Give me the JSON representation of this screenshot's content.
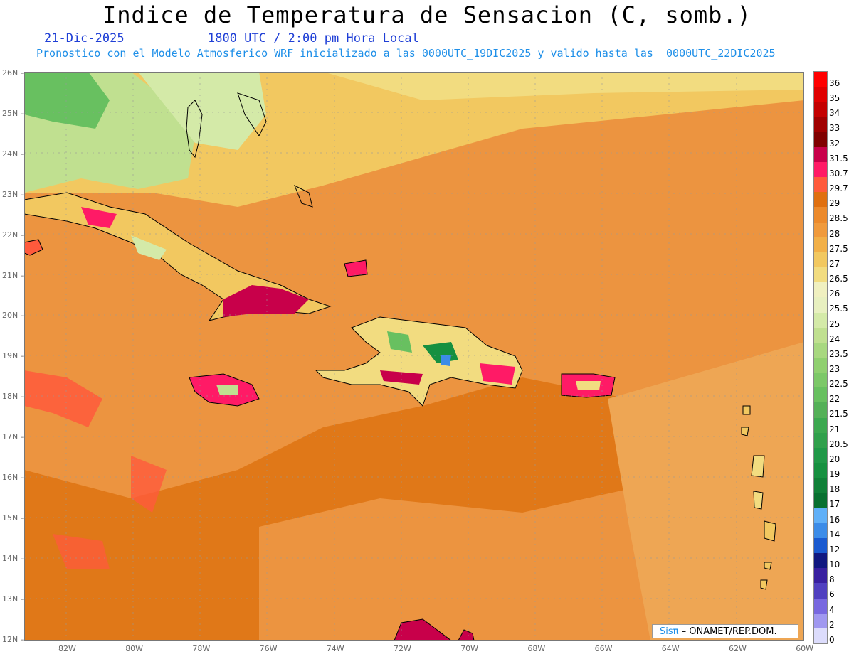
{
  "header": {
    "title": "Indice de Temperatura de Sensacion (C, somb.)",
    "date": "21-Dic-2025",
    "time": "1800 UTC / 2:00 pm Hora Local",
    "model_line": "Pronostico con el Modelo Atmosferico WRF inicializado a las 0000UTC_19DIC2025 y valido hasta las  0000UTC_22DIC2025"
  },
  "credit": {
    "logo": "Sisπ",
    "text": " – ONAMET/REP.DOM."
  },
  "axes": {
    "latitudes": [
      "26N",
      "25N",
      "24N",
      "23N",
      "22N",
      "21N",
      "20N",
      "19N",
      "18N",
      "17N",
      "16N",
      "15N",
      "14N",
      "13N",
      "12N"
    ],
    "longitudes": [
      "82W",
      "80W",
      "78W",
      "76W",
      "74W",
      "72W",
      "70W",
      "68W",
      "66W",
      "64W",
      "62W",
      "60W"
    ]
  },
  "legend": {
    "labels": [
      "36",
      "35",
      "34",
      "33",
      "32",
      "31.5",
      "30.7",
      "29.7",
      "29",
      "28.5",
      "28",
      "27.5",
      "27",
      "26.5",
      "26",
      "25.5",
      "25",
      "24",
      "23.5",
      "23",
      "22.5",
      "22",
      "21.5",
      "21",
      "20.5",
      "20",
      "19",
      "18",
      "17",
      "16",
      "14",
      "12",
      "10",
      "8",
      "6",
      "4",
      "2",
      "0"
    ],
    "colors": [
      "#ff0000",
      "#e00000",
      "#c40000",
      "#a00000",
      "#800000",
      "#c8004a",
      "#ff1a66",
      "#ff5a3c",
      "#e07010",
      "#ec8a2c",
      "#f09a3c",
      "#f2b048",
      "#f2c860",
      "#f2dc80",
      "#f0f0c0",
      "#e8f0c0",
      "#d4eaa8",
      "#c0e090",
      "#a8d880",
      "#90d070",
      "#7cc868",
      "#68c060",
      "#54b058",
      "#3ca850",
      "#30a04c",
      "#209848",
      "#169040",
      "#108038",
      "#087030",
      "#60b0f8",
      "#3c8ce8",
      "#1a5ad0",
      "#101880",
      "#3820a0",
      "#5040c0",
      "#7868e0",
      "#a098f0",
      "#dcdcfc"
    ]
  },
  "map": {
    "field_colors": {
      "sea_warm": "#e07818",
      "sea_mid": "#ec9440",
      "land_hot": "#c8004a",
      "land_cool": "#78c070",
      "pale": "#f2d878"
    }
  }
}
